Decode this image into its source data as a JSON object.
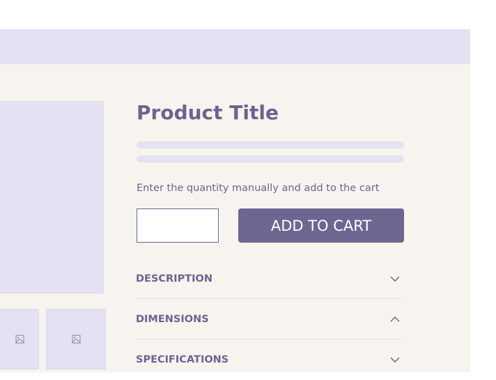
{
  "product": {
    "title": "Product Title",
    "hint": "Enter the quantity manually and add to the cart",
    "quantity_value": "",
    "add_to_cart_label": "ADD TO CART"
  },
  "thumbnails": [
    {
      "icon": "image-icon"
    },
    {
      "icon": "image-icon"
    }
  ],
  "accordion": [
    {
      "label": "DESCRIPTION",
      "icon": "chevron-down-icon",
      "expanded": false
    },
    {
      "label": "DIMENSIONS",
      "icon": "chevron-up-icon",
      "expanded": true
    },
    {
      "label": "SPECIFICATIONS",
      "icon": "chevron-down-icon",
      "expanded": false
    }
  ],
  "colors": {
    "accent": "#6d6691",
    "placeholder": "#e4e1f2",
    "background": "#f7f4ef"
  }
}
